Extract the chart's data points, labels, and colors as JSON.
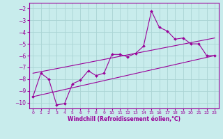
{
  "title": "",
  "xlabel": "Windchill (Refroidissement éolien,°C)",
  "bg_color": "#c8ecec",
  "grid_color": "#aad4d4",
  "line_color": "#990099",
  "xlim": [
    -0.5,
    23.5
  ],
  "ylim": [
    -10.5,
    -1.5
  ],
  "yticks": [
    -10,
    -9,
    -8,
    -7,
    -6,
    -5,
    -4,
    -3,
    -2
  ],
  "xticks": [
    0,
    1,
    2,
    3,
    4,
    5,
    6,
    7,
    8,
    9,
    10,
    11,
    12,
    13,
    14,
    15,
    16,
    17,
    18,
    19,
    20,
    21,
    22,
    23
  ],
  "series1_x": [
    0,
    1,
    2,
    3,
    4,
    5,
    6,
    7,
    8,
    9,
    10,
    11,
    12,
    13,
    14,
    15,
    16,
    17,
    18,
    19,
    20,
    21,
    22,
    23
  ],
  "series1_y": [
    -9.5,
    -7.5,
    -8.0,
    -10.2,
    -10.1,
    -8.4,
    -8.1,
    -7.3,
    -7.7,
    -7.5,
    -5.9,
    -5.9,
    -6.1,
    -5.8,
    -5.2,
    -2.2,
    -3.6,
    -3.9,
    -4.6,
    -4.5,
    -5.0,
    -5.0,
    -6.0,
    -6.0
  ],
  "series2_x": [
    0,
    23
  ],
  "series2_y": [
    -9.5,
    -6.0
  ],
  "series3_x": [
    0,
    23
  ],
  "series3_y": [
    -7.5,
    -4.5
  ]
}
